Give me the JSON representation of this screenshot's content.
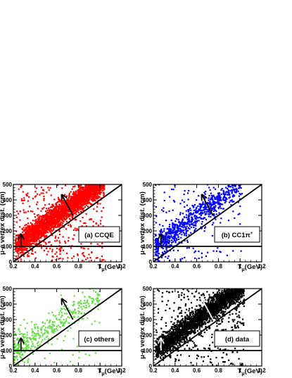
{
  "chart_data": [
    {
      "type": "scatter",
      "panel_label": "(a) CCQE",
      "xlabel": "T_μ(GeV)",
      "ylabel": "μ-e vertex dist. (cm)",
      "xlim": [
        0.2,
        1.2
      ],
      "ylim": [
        0,
        500
      ],
      "xticks": [
        "0.2",
        "0.4",
        "0.6",
        "0.8",
        "1",
        "1.2"
      ],
      "yticks": [
        "0",
        "100",
        "200",
        "300",
        "400",
        "500"
      ],
      "marker_color": "#ff0000",
      "density": "very high",
      "cut_lines": {
        "horizontal_y": 100,
        "diagonal": [
          [
            0.2,
            0
          ],
          [
            1.2,
            500
          ]
        ],
        "vertical_arrow": [
          [
            0.27,
            100
          ],
          [
            0.27,
            175
          ]
        ],
        "diagonal_arrow": [
          [
            0.75,
            300
          ],
          [
            0.65,
            430
          ]
        ]
      },
      "band": {
        "slope_cm_per_GeV": 550,
        "center_at_0_3GeV": 145,
        "spread": 45
      }
    },
    {
      "type": "scatter",
      "panel_label": "(b) CC1π",
      "panel_label_sup": "+",
      "xlabel": "T_μ(GeV)",
      "ylabel": "μ-e vertex dist. (cm)",
      "xlim": [
        0.2,
        1.2
      ],
      "ylim": [
        0,
        500
      ],
      "xticks": [
        "0.2",
        "0.4",
        "0.6",
        "0.8",
        "1",
        "1.2"
      ],
      "yticks": [
        "0",
        "100",
        "200",
        "300",
        "400",
        "500"
      ],
      "marker_color": "#0000ff",
      "density": "high",
      "cut_lines": {
        "horizontal_y": 100,
        "diagonal": [
          [
            0.2,
            0
          ],
          [
            1.2,
            500
          ]
        ],
        "vertical_arrow": [
          [
            0.27,
            100
          ],
          [
            0.27,
            175
          ]
        ],
        "diagonal_arrow": [
          [
            0.75,
            300
          ],
          [
            0.65,
            430
          ]
        ]
      }
    },
    {
      "type": "scatter",
      "panel_label": "(c) others",
      "xlabel": "T_μ(GeV)",
      "ylabel": "μ-e vertex dist. (cm)",
      "xlim": [
        0.2,
        1.2
      ],
      "ylim": [
        0,
        500
      ],
      "xticks": [
        "0.2",
        "0.4",
        "0.6",
        "0.8",
        "1",
        "1.2"
      ],
      "yticks": [
        "0",
        "100",
        "200",
        "300",
        "400",
        "500"
      ],
      "marker_color": "#66dd44",
      "density": "medium",
      "cut_lines": {
        "horizontal_y": 100,
        "diagonal": [
          [
            0.2,
            0
          ],
          [
            1.2,
            500
          ]
        ],
        "vertical_arrow": [
          [
            0.27,
            100
          ],
          [
            0.27,
            175
          ]
        ],
        "diagonal_arrow": [
          [
            0.75,
            300
          ],
          [
            0.65,
            430
          ]
        ]
      }
    },
    {
      "type": "scatter",
      "panel_label": "(d) data",
      "xlabel": "T_μ(GeV)",
      "ylabel": "μ-e vertex dist. (cm)",
      "xlim": [
        0.2,
        1.2
      ],
      "ylim": [
        0,
        500
      ],
      "xticks": [
        "0.2",
        "0.4",
        "0.6",
        "0.8",
        "1",
        "1.2"
      ],
      "yticks": [
        "0",
        "100",
        "200",
        "300",
        "400",
        "500"
      ],
      "marker_color": "#000000",
      "density": "very high",
      "cut_lines": {
        "horizontal_y": 100,
        "diagonal": [
          [
            0.2,
            0
          ],
          [
            1.2,
            500
          ]
        ],
        "vertical_arrow": [
          [
            0.27,
            100
          ],
          [
            0.27,
            175
          ]
        ],
        "diagonal_arrow": [
          [
            0.75,
            300
          ],
          [
            0.65,
            430
          ]
        ],
        "arrow_color": "#ffffff"
      }
    }
  ]
}
